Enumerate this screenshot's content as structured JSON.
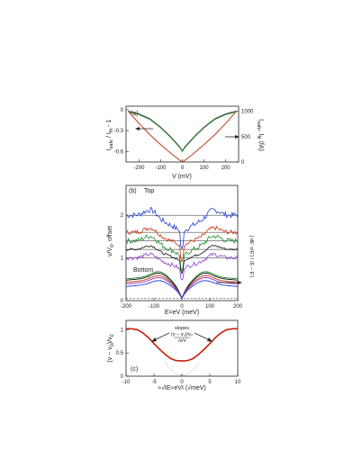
{
  "chart_data": [
    {
      "type": "line",
      "panel_label": "(a)",
      "xlabel": "V (mV)",
      "ylabel_left": "I",
      "ylabel_left_sub": "safe",
      "ylabel_left_mid": " / I",
      "ylabel_left_sub2": "fit",
      "ylabel_left_end": " - 1",
      "ylabel_right": "I",
      "ylabel_right_sub": "safe",
      "ylabel_right_end": ", I",
      "ylabel_right_sub2": "fit",
      "ylabel_right_unit": " (fA)",
      "xlim": [
        -260,
        260
      ],
      "ylim_left": [
        -0.75,
        0.05
      ],
      "ylim_right": [
        0,
        1100
      ],
      "xticks": [
        "-200",
        "-100",
        "0",
        "100",
        "200"
      ],
      "yticks_left": [
        "0",
        "-0.3",
        "-0.6"
      ],
      "yticks_right": [
        "1000",
        "500",
        "0"
      ],
      "series": [
        {
          "color": "#3a3a3a",
          "x": [
            -250,
            -200,
            -150,
            -100,
            -60,
            -30,
            -10,
            0,
            10,
            30,
            60,
            100,
            150,
            200,
            250
          ],
          "y": [
            -0.02,
            -0.06,
            -0.13,
            -0.25,
            -0.37,
            -0.47,
            -0.54,
            -0.59,
            -0.54,
            -0.47,
            -0.37,
            -0.25,
            -0.13,
            -0.06,
            -0.02
          ]
        },
        {
          "color": "#2e8b2e",
          "x": [
            -250,
            -200,
            -150,
            -100,
            -60,
            -30,
            -10,
            0,
            10,
            30,
            60,
            100,
            150,
            200,
            250
          ],
          "y": [
            -0.03,
            -0.07,
            -0.14,
            -0.26,
            -0.38,
            -0.48,
            -0.55,
            -0.6,
            -0.55,
            -0.48,
            -0.38,
            -0.26,
            -0.14,
            -0.07,
            -0.03
          ]
        },
        {
          "color": "#c03a1a",
          "axis": "right",
          "x": [
            -250,
            -200,
            -150,
            -100,
            -50,
            -20,
            0,
            20,
            50,
            100,
            150,
            200,
            250
          ],
          "y": [
            1000,
            760,
            540,
            340,
            160,
            60,
            0,
            60,
            160,
            340,
            540,
            760,
            1000
          ]
        }
      ]
    },
    {
      "type": "line",
      "panel_label": "(b)",
      "top_label": "Top",
      "bottom_label": "Bottom",
      "xlabel": "E=eV (meV)",
      "ylabel": "v/V",
      "ylabel_sub": "0",
      "ylabel_end": ", offset",
      "xlim": [
        -200,
        200
      ],
      "ylim": [
        0,
        2.7
      ],
      "xticks": [
        "-200",
        "-100",
        "0",
        "100",
        "200"
      ],
      "yticks": [
        "2",
        "1",
        "0"
      ],
      "right_axis_label": "∫ dE' ν(E') / (E − E')",
      "series": [
        {
          "color": "#1f3fd0",
          "offset": 2.0,
          "amp": 0.5,
          "noise": 0.13
        },
        {
          "color": "#d03010",
          "offset": 1.6,
          "amp": 0.42,
          "noise": 0.1
        },
        {
          "color": "#1a8a2a",
          "offset": 1.4,
          "amp": 0.45,
          "noise": 0.12
        },
        {
          "color": "#111111",
          "offset": 1.2,
          "amp": 0.35,
          "noise": 0.05
        },
        {
          "color": "#8a3ad0",
          "offset": 1.0,
          "amp": 0.33,
          "noise": 0.09
        }
      ],
      "bottom_series": [
        {
          "color": "#1a8a2a",
          "amp": 0.58
        },
        {
          "color": "#111111",
          "amp": 0.55
        },
        {
          "color": "#d03010",
          "amp": 0.5
        },
        {
          "color": "#8a3ad0",
          "amp": 0.46
        },
        {
          "color": "#1f3fd0",
          "amp": 0.4
        }
      ]
    },
    {
      "type": "line",
      "panel_label": "(c)",
      "xlabel": "≈√IE≈eVI (√meV)",
      "ylabel": "(v − v",
      "ylabel_sub": "0",
      "ylabel_end": ")/v",
      "ylabel_sub2": "0",
      "annotation_line1": "slopes",
      "annotation_line2": "(v − v₀)/v₀",
      "annotation_line3": "√eV",
      "xlim": [
        -10,
        10
      ],
      "ylim": [
        0,
        1.2
      ],
      "xticks": [
        "-10",
        "-5",
        "0",
        "5",
        "10"
      ],
      "yticks": [
        "1",
        "0.5",
        "0"
      ],
      "series": [
        {
          "color": "#c8200a",
          "x": [
            -10,
            -9,
            -8,
            -7,
            -6,
            -5,
            -4,
            -3,
            -2,
            -1.2,
            -0.6,
            0,
            0.6,
            1.2,
            2,
            3,
            4,
            5,
            6,
            7,
            8,
            9,
            10
          ],
          "y": [
            1.02,
            1.02,
            1.0,
            0.93,
            0.83,
            0.7,
            0.58,
            0.47,
            0.38,
            0.34,
            0.33,
            0.33,
            0.33,
            0.34,
            0.38,
            0.47,
            0.58,
            0.7,
            0.83,
            0.93,
            1.0,
            1.02,
            1.02
          ]
        }
      ]
    }
  ]
}
